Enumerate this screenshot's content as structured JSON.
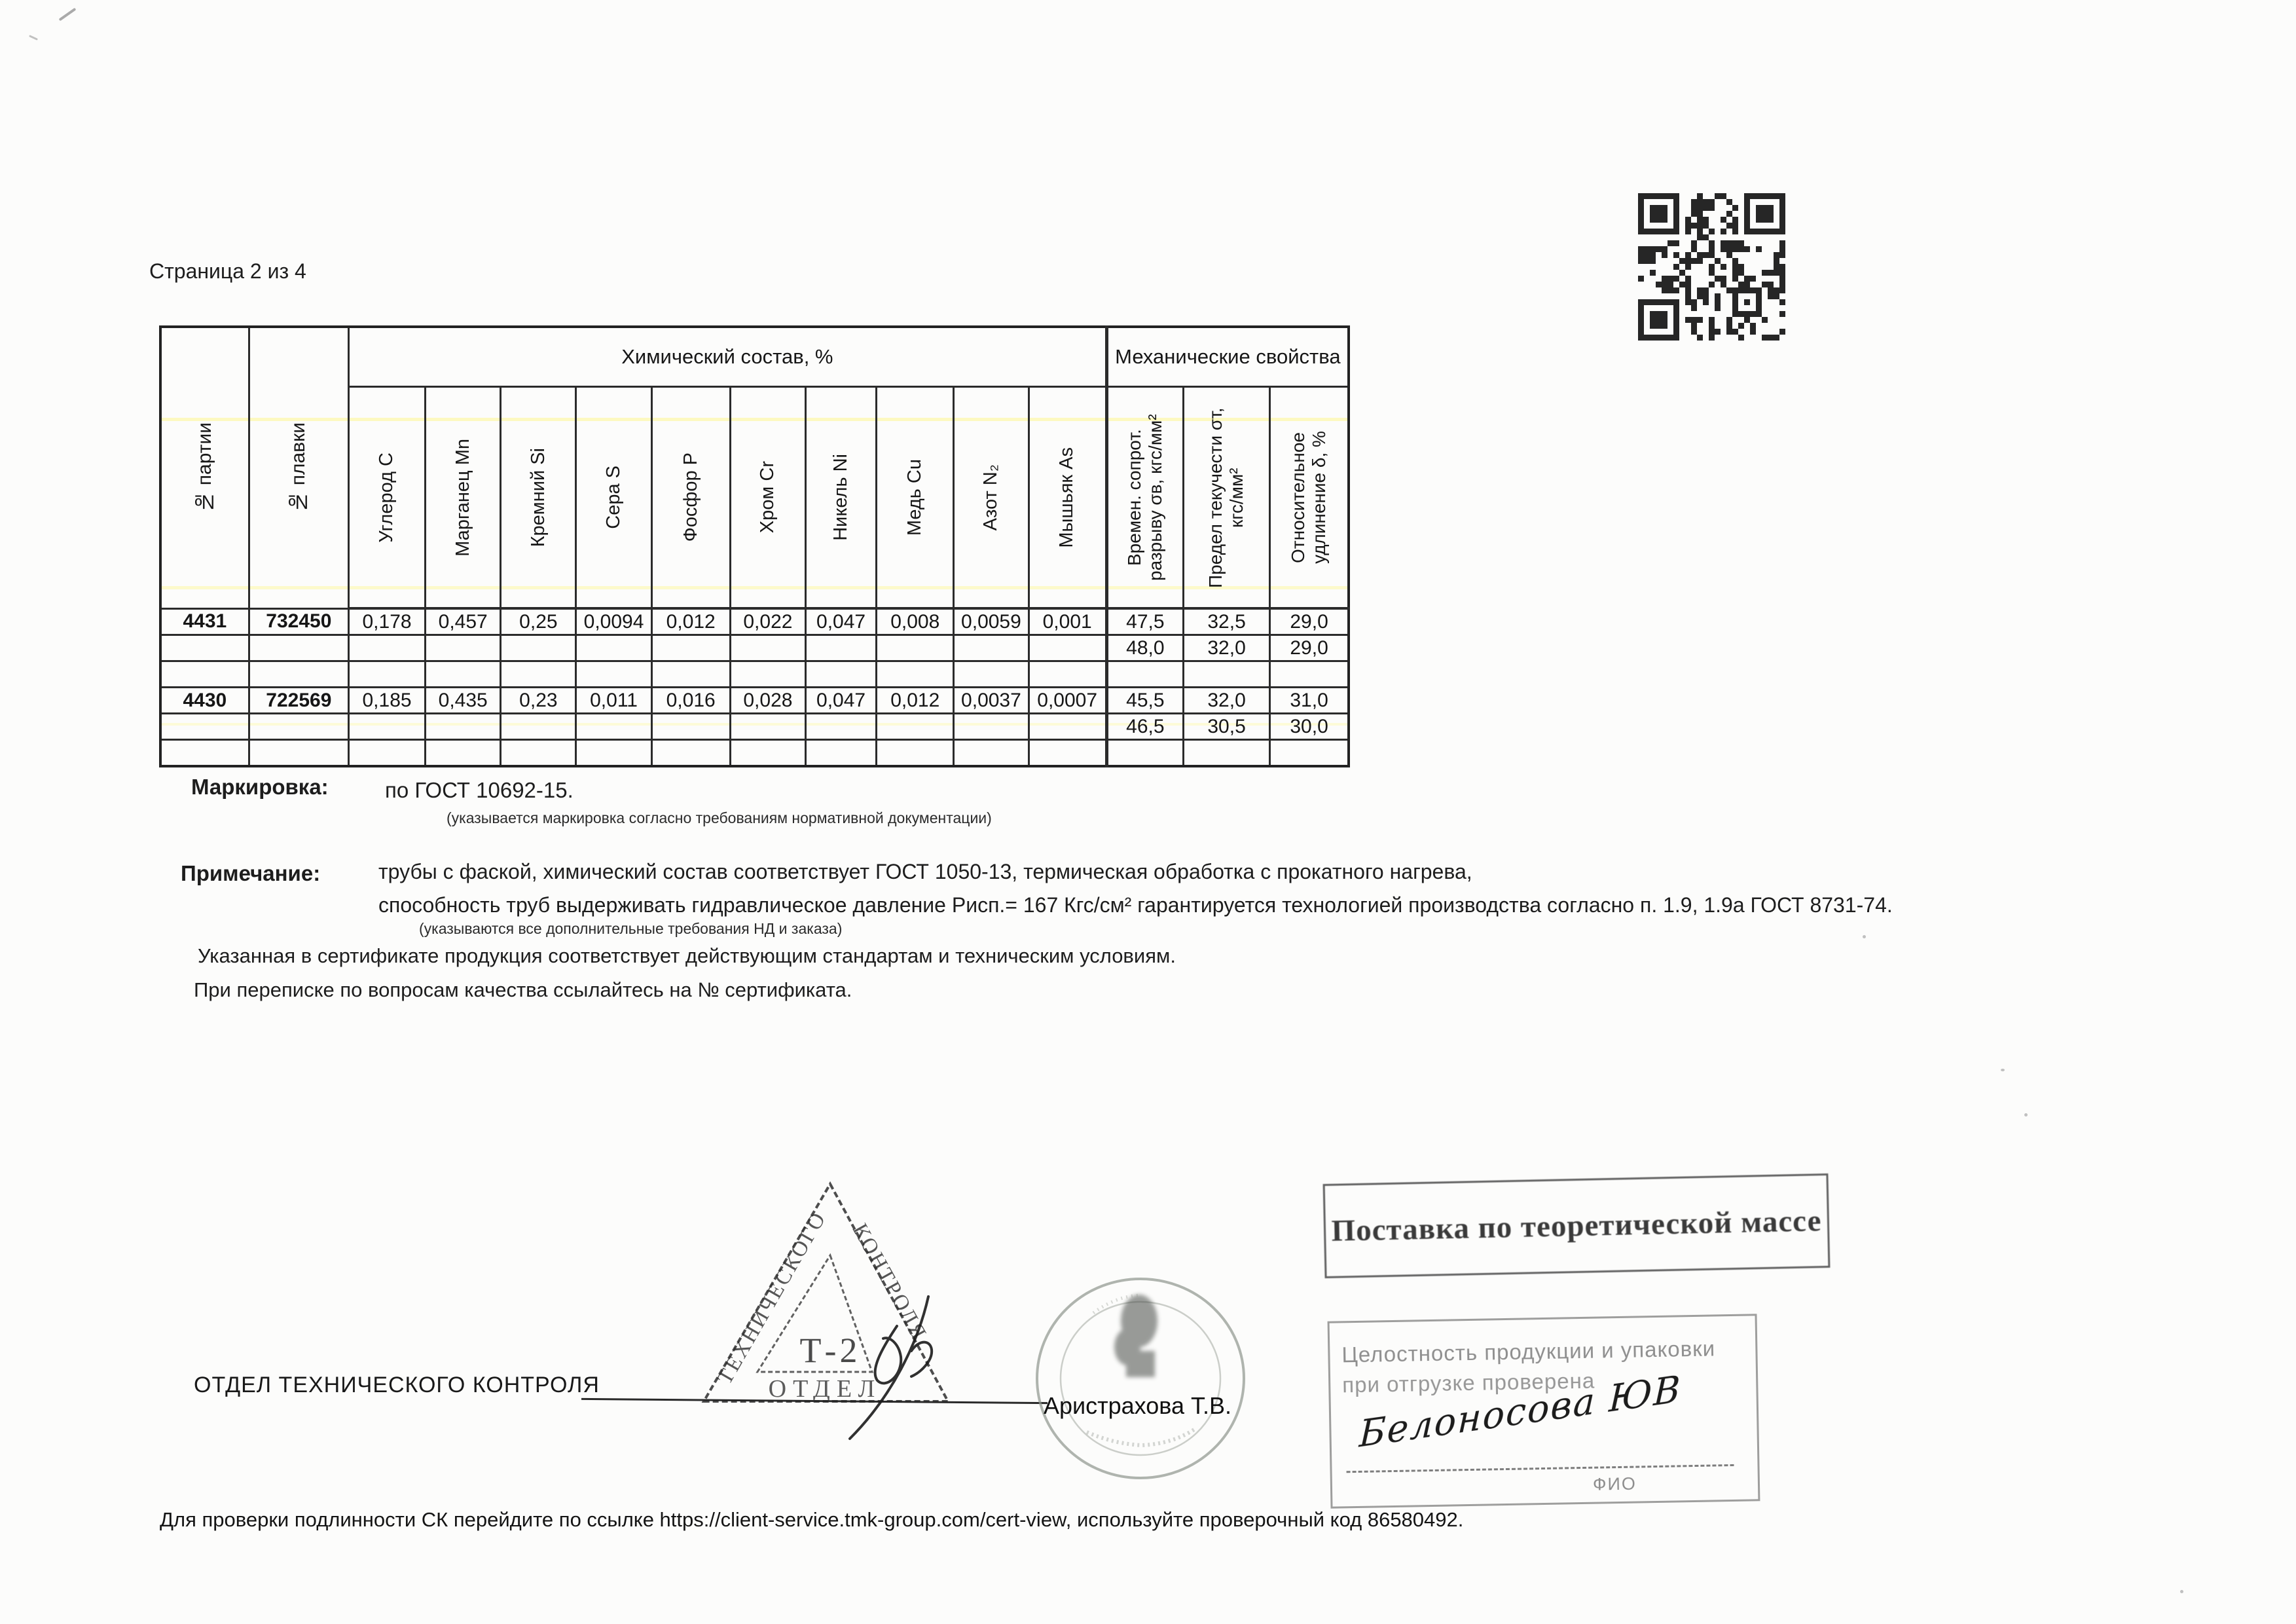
{
  "page": {
    "label": "Страница 2 из 4",
    "footer": "Для проверки подлинности СК перейдите по ссылке https://client-service.tmk-group.com/cert-view, используйте проверочный код  86580492."
  },
  "table": {
    "group_chemical": "Химический состав, %",
    "group_mechanical": "Механические свойства",
    "col_batch": "№ партии",
    "col_melt": "№ плавки",
    "chem_cols": [
      "Углерод С",
      "Марганец Mn",
      "Кремний Si",
      "Сера S",
      "Фосфор Р",
      "Хром Cr",
      "Никель Ni",
      "Медь Cu",
      "Азот N₂",
      "Мышьяк As"
    ],
    "mech_cols": [
      "Времен. сопрот. разрыву σв, кгс/мм²",
      "Предел текучести σт, кгс/мм²",
      "Относительное удлинение δ, %"
    ],
    "rows": [
      [
        "4431",
        "732450",
        "0,178",
        "0,457",
        "0,25",
        "0,0094",
        "0,012",
        "0,022",
        "0,047",
        "0,008",
        "0,0059",
        "0,001",
        "47,5",
        "32,5",
        "29,0"
      ],
      [
        "",
        "",
        "",
        "",
        "",
        "",
        "",
        "",
        "",
        "",
        "",
        "",
        "48,0",
        "32,0",
        "29,0"
      ],
      [
        "",
        "",
        "",
        "",
        "",
        "",
        "",
        "",
        "",
        "",
        "",
        "",
        "",
        "",
        ""
      ],
      [
        "4430",
        "722569",
        "0,185",
        "0,435",
        "0,23",
        "0,011",
        "0,016",
        "0,028",
        "0,047",
        "0,012",
        "0,0037",
        "0,0007",
        "45,5",
        "32,0",
        "31,0"
      ],
      [
        "",
        "",
        "",
        "",
        "",
        "",
        "",
        "",
        "",
        "",
        "",
        "",
        "46,5",
        "30,5",
        "30,0"
      ],
      [
        "",
        "",
        "",
        "",
        "",
        "",
        "",
        "",
        "",
        "",
        "",
        "",
        "",
        "",
        ""
      ]
    ]
  },
  "marking": {
    "label": "Маркировка:",
    "value": "по ГОСТ 10692-15.",
    "caption": "(указывается маркировка согласно требованиям нормативной документации)"
  },
  "note": {
    "label": "Примечание:",
    "line1": "трубы с фаской,   химический состав соответствует ГОСТ 1050-13, термическая обработка с прокатного нагрева,",
    "line2": "способность труб выдерживать гидравлическое давление Рисп.= 167 Кгс/см² гарантируется технологией производства согласно п. 1.9, 1.9а ГОСТ 8731-74.",
    "caption": "(указываются все дополнительные требования НД и заказа)"
  },
  "statements": {
    "line1": "Указанная в сертификате продукция соответствует действующим стандартам и техническим условиям.",
    "line2": "При переписке по вопросам качества ссылайтесь на № сертификата."
  },
  "signoff": {
    "otk_label": "ОТДЕЛ ТЕХНИЧЕСКОГО КОНТРОЛЯ",
    "inspector": "Аристрахова Т.В."
  },
  "stamps": {
    "triangle": {
      "left": "ТЕХНИЧЕСКОГО",
      "right": "КОНТРОЛЯ",
      "center": "Т-2",
      "bottom": "ОТДЕЛ"
    },
    "theoretical_mass": "Поставка по теоретической массе",
    "integrity": {
      "line1": "Целостность продукции и упаковки",
      "line2": "при отгрузке проверена",
      "signature": "Белоносова ЮВ",
      "fio_label": "ФИО"
    }
  },
  "icons": {
    "qr": "qr-code"
  }
}
